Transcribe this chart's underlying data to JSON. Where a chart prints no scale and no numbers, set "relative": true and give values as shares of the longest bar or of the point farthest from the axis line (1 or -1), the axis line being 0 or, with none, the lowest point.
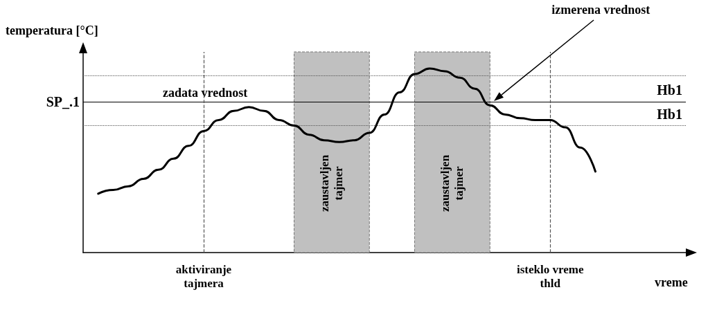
{
  "chart_data": {
    "type": "line",
    "relative": true,
    "xlabel": "vreme",
    "ylabel": "temperatura [°C]",
    "tick_labels": "x",
    "grid": false,
    "marker": "none",
    "line_style": "solid",
    "categories": [
      null,
      null,
      null,
      null,
      null,
      null,
      null,
      null,
      "aktiviranje\ntajmera",
      null,
      null,
      null,
      null,
      null,
      null,
      null,
      null,
      null,
      null,
      null,
      null,
      null,
      null,
      null,
      null,
      null,
      null,
      null,
      null,
      null,
      null,
      "isteklo vreme\nthld",
      null,
      null,
      null,
      null,
      null,
      null,
      null,
      null,
      null
    ],
    "series": [
      {
        "color": "#000000",
        "values": [
          null,
          0.32,
          0.34,
          0.36,
          0.4,
          0.45,
          0.51,
          0.58,
          0.66,
          0.72,
          0.77,
          0.79,
          0.77,
          0.72,
          0.69,
          0.64,
          0.61,
          0.6,
          0.61,
          0.65,
          0.75,
          0.87,
          0.97,
          1,
          0.985,
          0.95,
          0.89,
          0.8,
          0.75,
          0.73,
          0.72,
          0.72,
          0.68,
          0.57,
          0.44,
          null,
          null,
          null,
          null,
          null,
          null
        ]
      }
    ],
    "ref_lines": [
      {
        "axis": "y",
        "value": 0.82,
        "label": "SP_.1",
        "color": "#000000",
        "line_style": "solid"
      },
      {
        "axis": "y",
        "value": 0.96,
        "label": "Hb1",
        "color": "#555555",
        "line_style": "dotted"
      },
      {
        "axis": "y",
        "value": 0.69,
        "label": "Hb1",
        "color": "#555555",
        "line_style": "dotted"
      },
      {
        "axis": "x",
        "value": "aktiviranje\ntajmera",
        "color": "#555555",
        "line_style": "dashed"
      },
      {
        "axis": "x",
        "value": "isteklo vreme\nthld",
        "color": "#555555",
        "line_style": "dashed"
      }
    ],
    "annotations": [
      {
        "text": "zadata vrednost",
        "y": 0.82
      },
      "izmerena vrednost",
      "zaustavljen\ntajmer",
      "zaustavljen\ntajmer"
    ]
  }
}
